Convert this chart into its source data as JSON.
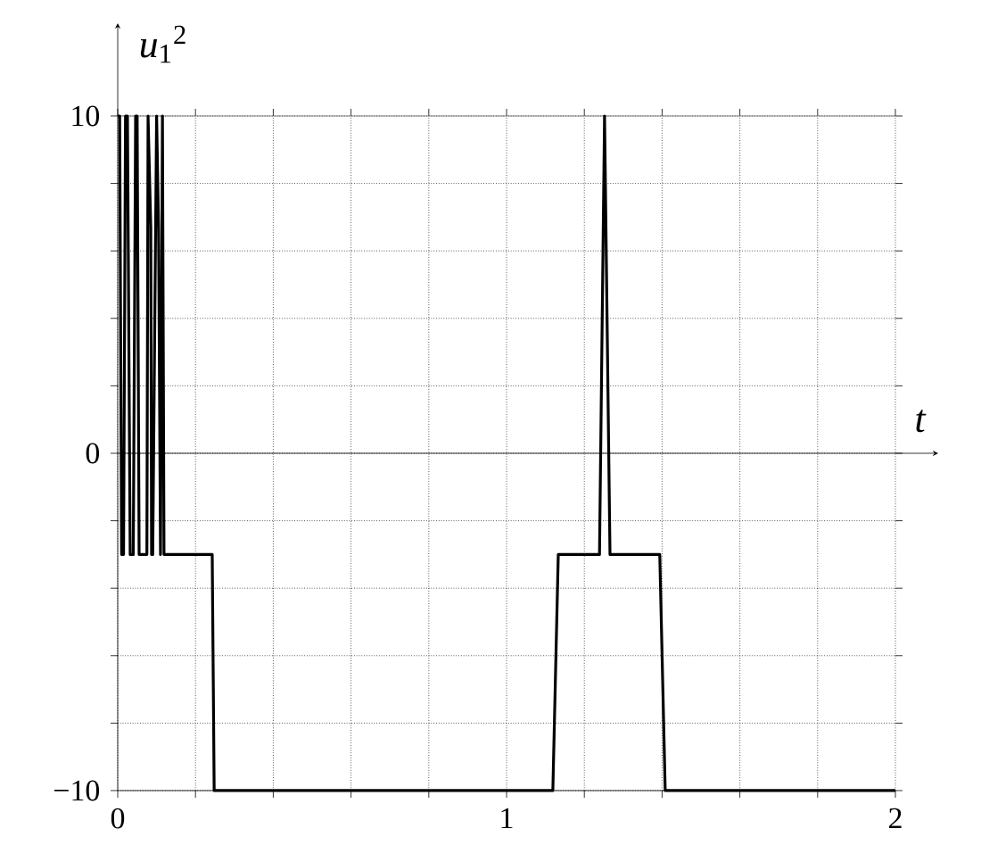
{
  "chart_data": {
    "type": "line",
    "xlabel": "*t*",
    "ylabel": "*u*$_{1}$$^{2}$",
    "x": [
      0.0,
      0.005,
      0.01,
      0.015,
      0.02,
      0.025,
      0.032,
      0.04,
      0.046,
      0.05,
      0.055,
      0.075,
      0.078,
      0.085,
      0.087,
      0.09,
      0.1,
      0.105,
      0.11,
      0.115,
      0.119,
      0.243,
      0.248,
      1.119,
      1.133,
      1.239,
      1.252,
      1.266,
      1.394,
      1.408,
      2.0
    ],
    "series": [
      {
        "color": "#000000",
        "values": [
          10,
          10,
          -3,
          -3,
          10,
          10,
          -3,
          -3,
          10,
          10,
          -3,
          -3,
          10,
          6.7,
          -3,
          -3,
          10,
          6.7,
          -3,
          10,
          -3,
          -3,
          -10,
          -10,
          -3,
          -3,
          10,
          -3,
          -3,
          -10,
          -10
        ]
      }
    ],
    "xlim": [
      0,
      2
    ],
    "ylim": [
      -10,
      10
    ],
    "xticks": [
      0,
      {
        "value": 0.2,
        "label": null
      },
      {
        "value": 0.4,
        "label": null
      },
      {
        "value": 0.6,
        "label": null
      },
      {
        "value": 0.8,
        "label": null
      },
      1,
      {
        "value": 1.2,
        "label": null
      },
      {
        "value": 1.4,
        "label": null
      },
      {
        "value": 1.6,
        "label": null
      },
      {
        "value": 1.8,
        "label": null
      },
      2
    ],
    "yticks": [
      {
        "value": -10,
        "label": "−10"
      },
      {
        "value": -8,
        "label": null
      },
      {
        "value": -6,
        "label": null
      },
      {
        "value": -4,
        "label": null
      },
      {
        "value": -2,
        "label": null
      },
      0,
      {
        "value": 2,
        "label": null
      },
      {
        "value": 4,
        "label": null
      },
      {
        "value": 6,
        "label": null
      },
      {
        "value": 8,
        "label": null
      },
      10
    ],
    "grid": true,
    "line_style": "solid",
    "marker": "none"
  }
}
